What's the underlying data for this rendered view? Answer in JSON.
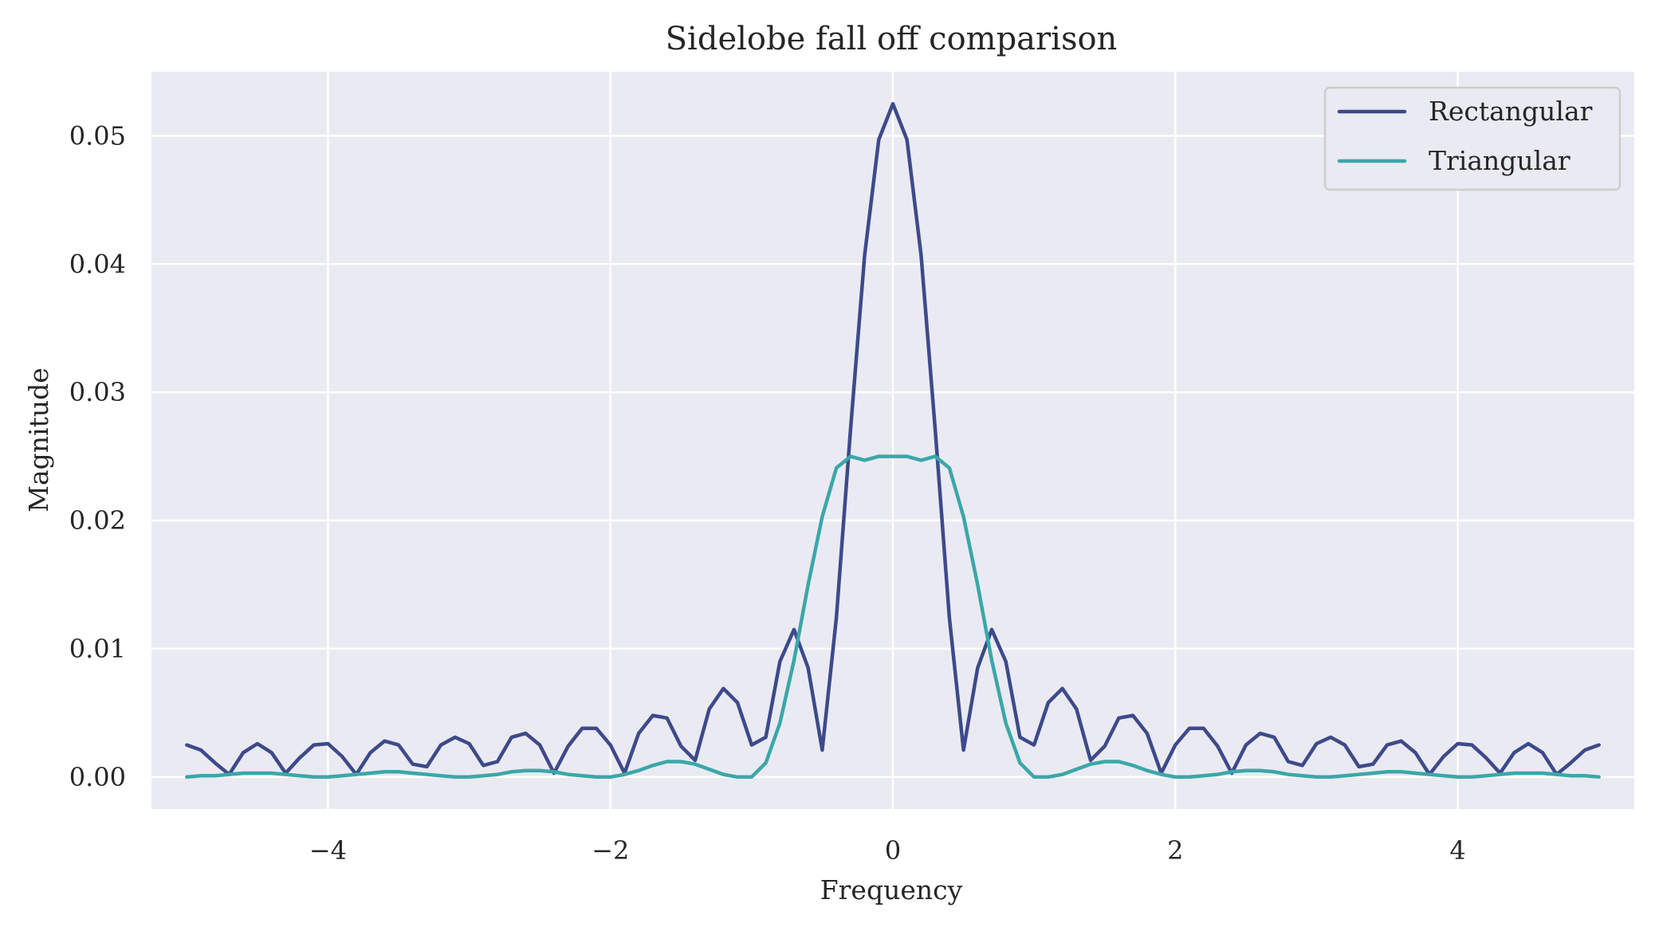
{
  "chart_data": {
    "type": "line",
    "title": "Sidelobe fall off comparison",
    "xlabel": "Frequency",
    "ylabel": "Magnitude",
    "xlim": [
      -5.25,
      5.25
    ],
    "ylim": [
      -0.0025,
      0.055
    ],
    "xticks": [
      -4,
      -2,
      0,
      2,
      4
    ],
    "xtick_labels": [
      "−4",
      "−2",
      "0",
      "2",
      "4"
    ],
    "yticks": [
      0.0,
      0.01,
      0.02,
      0.03,
      0.04,
      0.05
    ],
    "ytick_labels": [
      "0.00",
      "0.01",
      "0.02",
      "0.03",
      "0.04",
      "0.05"
    ],
    "x_range": [
      -5,
      5
    ],
    "grid": true,
    "legend_position": "top-right",
    "background": "#eaeaf2",
    "series": [
      {
        "name": "Rectangular",
        "color": "#3d4a8a",
        "x": [
          -5.0,
          -4.9,
          -4.8,
          -4.7,
          -4.6,
          -4.5,
          -4.4,
          -4.3,
          -4.2,
          -4.1,
          -4.0,
          -3.9,
          -3.8,
          -3.7,
          -3.6,
          -3.5,
          -3.4,
          -3.3,
          -3.2,
          -3.1,
          -3.0,
          -2.9,
          -2.8,
          -2.7,
          -2.6,
          -2.5,
          -2.4,
          -2.3,
          -2.2,
          -2.1,
          -2.0,
          -1.9,
          -1.8,
          -1.7,
          -1.6,
          -1.5,
          -1.4,
          -1.3,
          -1.2,
          -1.1,
          -1.0,
          -0.9,
          -0.8,
          -0.7,
          -0.6,
          -0.5,
          -0.4,
          -0.3,
          -0.2,
          -0.1,
          0.0,
          0.1,
          0.2,
          0.3,
          0.4,
          0.5,
          0.6,
          0.7,
          0.8,
          0.9,
          1.0,
          1.1,
          1.2,
          1.3,
          1.4,
          1.5,
          1.6,
          1.7,
          1.8,
          1.9,
          2.0,
          2.1,
          2.2,
          2.3,
          2.4,
          2.5,
          2.6,
          2.7,
          2.8,
          2.9,
          3.0,
          3.1,
          3.2,
          3.3,
          3.4,
          3.5,
          3.6,
          3.7,
          3.8,
          3.9,
          4.0,
          4.1,
          4.2,
          4.3,
          4.4,
          4.5,
          4.6,
          4.7,
          4.8,
          4.9,
          5.0
        ],
        "values": [
          0.0025,
          0.0021,
          0.0011,
          0.0002,
          0.0019,
          0.0026,
          0.0019,
          0.0003,
          0.0015,
          0.0025,
          0.0026,
          0.0016,
          0.0002,
          0.0019,
          0.0028,
          0.0025,
          0.001,
          0.0008,
          0.0025,
          0.0031,
          0.0026,
          0.0009,
          0.0012,
          0.0031,
          0.0034,
          0.0025,
          0.0003,
          0.0024,
          0.0038,
          0.0038,
          0.0025,
          0.0003,
          0.0034,
          0.0048,
          0.0046,
          0.0024,
          0.0013,
          0.0053,
          0.0069,
          0.0058,
          0.0025,
          0.0031,
          0.009,
          0.0115,
          0.0085,
          0.0021,
          0.0124,
          0.0271,
          0.0407,
          0.0497,
          0.0525,
          0.0497,
          0.0407,
          0.0271,
          0.0124,
          0.0021,
          0.0085,
          0.0115,
          0.009,
          0.0031,
          0.0025,
          0.0058,
          0.0069,
          0.0053,
          0.0013,
          0.0024,
          0.0046,
          0.0048,
          0.0034,
          0.0003,
          0.0025,
          0.0038,
          0.0038,
          0.0024,
          0.0003,
          0.0025,
          0.0034,
          0.0031,
          0.0012,
          0.0009,
          0.0026,
          0.0031,
          0.0025,
          0.0008,
          0.001,
          0.0025,
          0.0028,
          0.0019,
          0.0002,
          0.0016,
          0.0026,
          0.0025,
          0.0015,
          0.0003,
          0.0019,
          0.0026,
          0.0019,
          0.0002,
          0.0011,
          0.0021,
          0.0025
        ]
      },
      {
        "name": "Triangular",
        "color": "#3aa7a8",
        "x": [
          -5.0,
          -4.9,
          -4.8,
          -4.7,
          -4.6,
          -4.5,
          -4.4,
          -4.3,
          -4.2,
          -4.1,
          -4.0,
          -3.9,
          -3.8,
          -3.7,
          -3.6,
          -3.5,
          -3.4,
          -3.3,
          -3.2,
          -3.1,
          -3.0,
          -2.9,
          -2.8,
          -2.7,
          -2.6,
          -2.5,
          -2.4,
          -2.3,
          -2.2,
          -2.1,
          -2.0,
          -1.9,
          -1.8,
          -1.7,
          -1.6,
          -1.5,
          -1.4,
          -1.3,
          -1.2,
          -1.1,
          -1.0,
          -0.9,
          -0.8,
          -0.7,
          -0.6,
          -0.5,
          -0.4,
          -0.3,
          -0.2,
          -0.1,
          0.0,
          0.1,
          0.2,
          0.3,
          0.4,
          0.5,
          0.6,
          0.7,
          0.8,
          0.9,
          1.0,
          1.1,
          1.2,
          1.3,
          1.4,
          1.5,
          1.6,
          1.7,
          1.8,
          1.9,
          2.0,
          2.1,
          2.2,
          2.3,
          2.4,
          2.5,
          2.6,
          2.7,
          2.8,
          2.9,
          3.0,
          3.1,
          3.2,
          3.3,
          3.4,
          3.5,
          3.6,
          3.7,
          3.8,
          3.9,
          4.0,
          4.1,
          4.2,
          4.3,
          4.4,
          4.5,
          4.6,
          4.7,
          4.8,
          4.9,
          5.0
        ],
        "values": [
          0.0,
          0.0001,
          0.0001,
          0.0002,
          0.0003,
          0.0003,
          0.0003,
          0.0002,
          0.0001,
          0.0,
          0.0,
          0.0001,
          0.0002,
          0.0003,
          0.0004,
          0.0004,
          0.0003,
          0.0002,
          0.0001,
          0.0,
          0.0,
          0.0001,
          0.0002,
          0.0004,
          0.0005,
          0.0005,
          0.0004,
          0.0002,
          0.0001,
          0.0,
          0.0,
          0.0002,
          0.0005,
          0.0009,
          0.0012,
          0.0012,
          0.001,
          0.0006,
          0.0002,
          0.0,
          0.0,
          0.0011,
          0.0042,
          0.0091,
          0.015,
          0.0203,
          0.0241,
          0.025,
          0.0247,
          0.025,
          0.025,
          0.025,
          0.0247,
          0.025,
          0.0241,
          0.0203,
          0.015,
          0.0091,
          0.0042,
          0.0011,
          0.0,
          0.0,
          0.0002,
          0.0006,
          0.001,
          0.0012,
          0.0012,
          0.0009,
          0.0005,
          0.0002,
          0.0,
          0.0,
          0.0001,
          0.0002,
          0.0004,
          0.0005,
          0.0005,
          0.0004,
          0.0002,
          0.0001,
          0.0,
          0.0,
          0.0001,
          0.0002,
          0.0003,
          0.0004,
          0.0004,
          0.0003,
          0.0002,
          0.0001,
          0.0,
          0.0,
          0.0001,
          0.0002,
          0.0003,
          0.0003,
          0.0003,
          0.0002,
          0.0001,
          0.0001,
          0.0
        ]
      }
    ]
  }
}
